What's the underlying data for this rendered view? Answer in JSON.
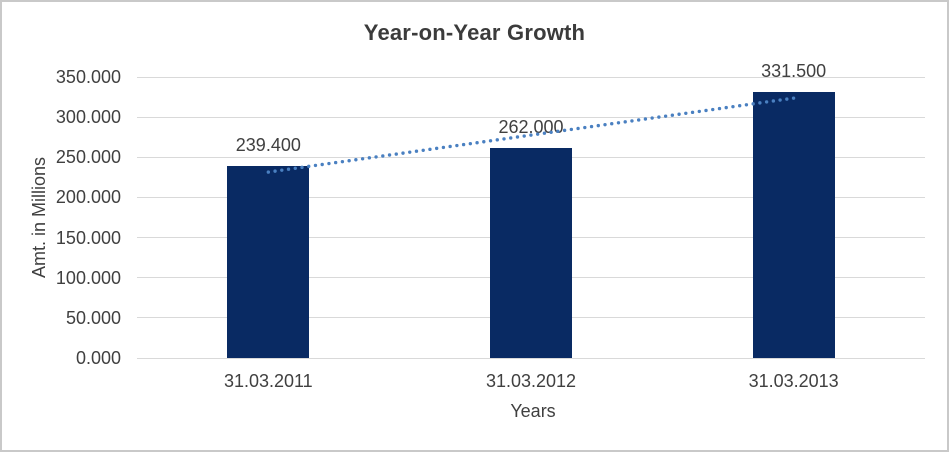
{
  "chart_data": {
    "type": "bar",
    "title": "Year-on-Year Growth",
    "xlabel": "Years",
    "ylabel": "Amt. in Millions",
    "categories": [
      "31.03.2011",
      "31.03.2012",
      "31.03.2013"
    ],
    "values": [
      239400,
      262000,
      331500
    ],
    "data_labels": [
      "239.400",
      "262.000",
      "331.500"
    ],
    "y_ticks": [
      "350.000",
      "300.000",
      "250.000",
      "200.000",
      "150.000",
      "100.000",
      "50.000",
      "0.000"
    ],
    "ylim": [
      0,
      350000
    ],
    "grid": "horizontal-major",
    "legend": "none",
    "trendline": {
      "type": "linear",
      "style": "dotted",
      "color": "#4a80c1"
    },
    "colors": {
      "bar": "#092a63",
      "gridline": "#d9d9d9",
      "axis_text": "#404040",
      "title_text": "#3b3b3b",
      "frame_border": "#c9c9c9",
      "background": "#ffffff"
    }
  }
}
